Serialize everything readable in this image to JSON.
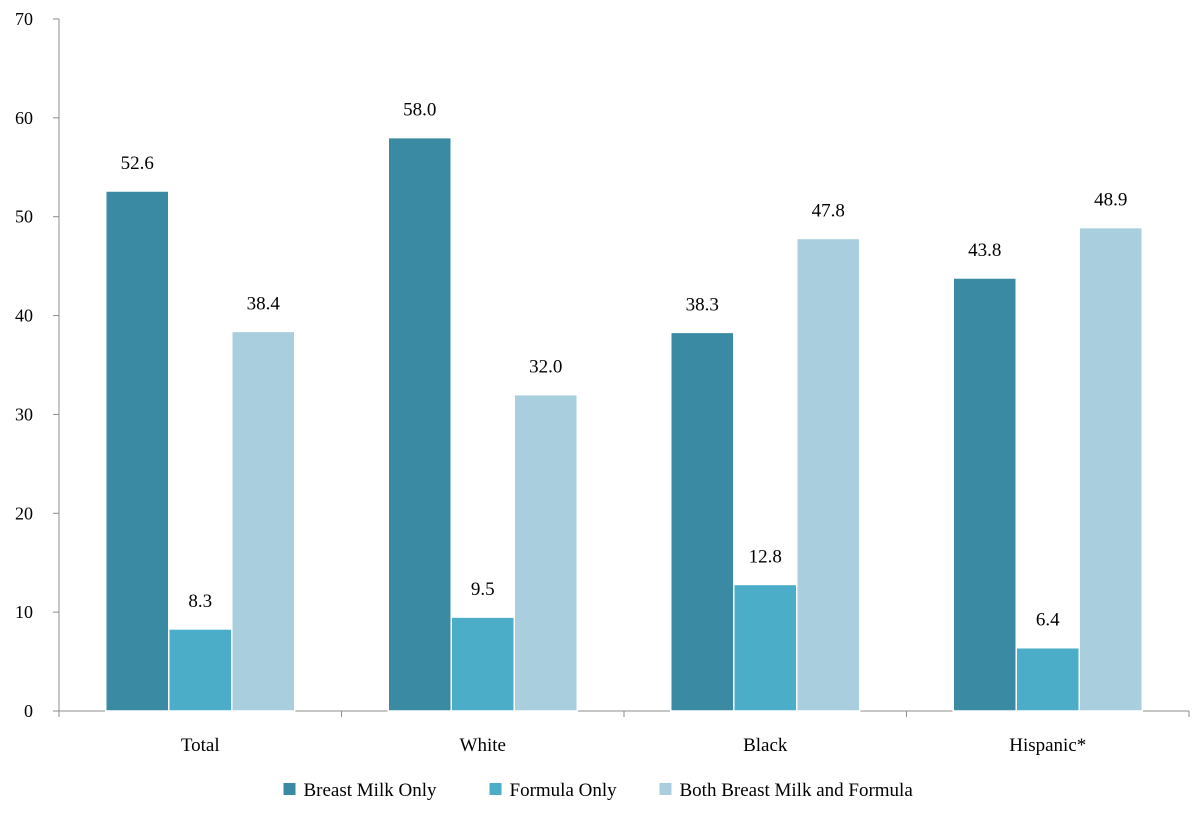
{
  "chart_data": {
    "type": "bar",
    "categories": [
      "Total",
      "White",
      "Black",
      "Hispanic*"
    ],
    "series": [
      {
        "name": "Breast Milk Only",
        "values": [
          52.6,
          58.0,
          38.3,
          43.8
        ],
        "color": "#3a8aa3"
      },
      {
        "name": "Formula Only",
        "values": [
          8.3,
          9.5,
          12.8,
          6.4
        ],
        "color": "#4badc8"
      },
      {
        "name": "Both Breast Milk and Formula",
        "values": [
          38.4,
          32.0,
          47.8,
          48.9
        ],
        "color": "#a9cfde"
      }
    ],
    "ylim": [
      0,
      70
    ],
    "yticks": [
      0,
      10,
      20,
      30,
      40,
      50,
      60,
      70
    ],
    "value_format_decimals": 1,
    "grid": false,
    "legend_position": "bottom"
  }
}
